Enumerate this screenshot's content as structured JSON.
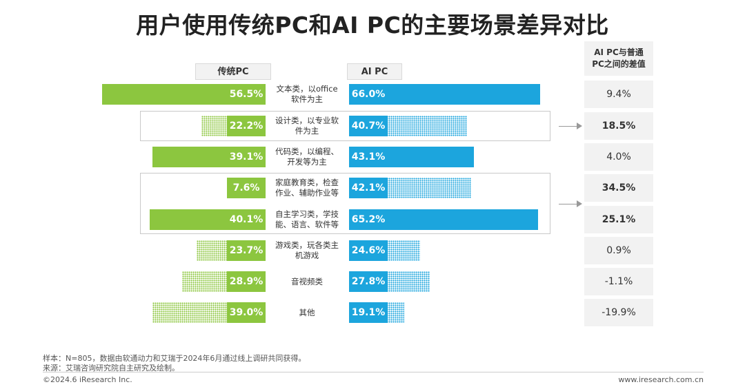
{
  "title": "用户使用传统PC和AI PC的主要场景差异对比",
  "chart_data": {
    "type": "bar",
    "categories": [
      "文本类，以office\n软件为主",
      "设计类，以专业软\n件为主",
      "代码类，以编程、\n开发等为主",
      "家庭教育类，检查\n作业、辅助作业等",
      "自主学习类，学技\n能、语言、软件等",
      "游戏类，玩各类主\n机游戏",
      "音视频类",
      "其他"
    ],
    "series": [
      {
        "name": "传统PC",
        "values": [
          56.5,
          22.2,
          39.1,
          7.6,
          40.1,
          23.7,
          28.9,
          39.0
        ],
        "labels": [
          "56.5%",
          "22.2%",
          "39.1%",
          "7.6%",
          "40.1%",
          "23.7%",
          "28.9%",
          "39.0%"
        ]
      },
      {
        "name": "AI PC",
        "values": [
          66.0,
          40.7,
          43.1,
          42.1,
          65.2,
          24.6,
          27.8,
          19.1
        ],
        "labels": [
          "66.0%",
          "40.7%",
          "43.1%",
          "42.1%",
          "65.2%",
          "24.6%",
          "27.8%",
          "19.1%"
        ]
      }
    ],
    "difference": {
      "name": "AI PC与普通\nPC之间的差值",
      "labels": [
        "9.4%",
        "18.5%",
        "4.0%",
        "34.5%",
        "25.1%",
        "0.9%",
        "-1.1%",
        "-19.9%"
      ],
      "highlighted": [
        1,
        3,
        4
      ]
    },
    "solid": [
      true,
      false,
      true,
      false,
      true,
      false,
      false,
      false
    ]
  },
  "colors": {
    "traditional": "#8cc63f",
    "ai": "#1ca5dd"
  },
  "footer": {
    "note1": "样本：N=805，数据由软通动力和艾瑞于2024年6月通过线上调研共同获得。",
    "note2": "来源：艾瑞咨询研究院自主研究及绘制。",
    "copyright": "©2024.6 iResearch Inc.",
    "website": "www.iresearch.com.cn"
  }
}
